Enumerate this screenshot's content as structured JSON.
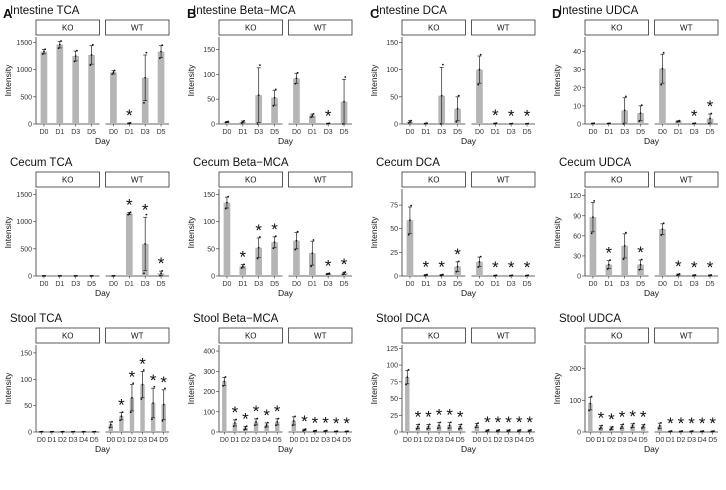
{
  "panel_labels": [
    "A",
    "B",
    "C",
    "D"
  ],
  "chart_data": [
    {
      "type": "bar",
      "title": "Intestine TCA",
      "xlabel": "Day",
      "ylabel": "Intensity",
      "facets": [
        {
          "name": "KO",
          "categories": [
            "D0",
            "D1",
            "D3",
            "D5"
          ],
          "values": [
            1330,
            1460,
            1250,
            1270
          ],
          "err": [
            40,
            60,
            90,
            170
          ],
          "stars": [
            false,
            false,
            false,
            false
          ]
        },
        {
          "name": "WT",
          "categories": [
            "D0",
            "D1",
            "D3",
            "D5"
          ],
          "values": [
            950,
            15,
            850,
            1330
          ],
          "err": [
            30,
            5,
            420,
            110
          ],
          "stars": [
            false,
            true,
            false,
            false
          ]
        }
      ],
      "yticks": [
        0,
        500,
        1000,
        1500
      ],
      "ylim": [
        0,
        1600
      ]
    },
    {
      "type": "bar",
      "title": "Intestine Beta−MCA",
      "xlabel": "Day",
      "ylabel": "Intensity",
      "facets": [
        {
          "name": "KO",
          "categories": [
            "D0",
            "D1",
            "D3",
            "D5"
          ],
          "values": [
            4,
            4,
            58,
            53
          ],
          "err": [
            1,
            2,
            55,
            15
          ],
          "stars": [
            false,
            false,
            false,
            false
          ]
        },
        {
          "name": "WT",
          "categories": [
            "D0",
            "D1",
            "D3",
            "D5"
          ],
          "values": [
            92,
            17,
            1,
            45
          ],
          "err": [
            10,
            3,
            0.5,
            45
          ],
          "stars": [
            false,
            false,
            true,
            false
          ]
        }
      ],
      "yticks": [
        0,
        50,
        100,
        150
      ],
      "ylim": [
        0,
        175
      ]
    },
    {
      "type": "bar",
      "title": "Intestine DCA",
      "xlabel": "Day",
      "ylabel": "Intensity",
      "facets": [
        {
          "name": "KO",
          "categories": [
            "D0",
            "D1",
            "D3",
            "D5"
          ],
          "values": [
            4,
            1,
            52,
            28
          ],
          "err": [
            2,
            0.5,
            52,
            22
          ],
          "stars": [
            false,
            false,
            false,
            false
          ]
        },
        {
          "name": "WT",
          "categories": [
            "D0",
            "D1",
            "D3",
            "D5"
          ],
          "values": [
            100,
            1,
            0.5,
            0.5
          ],
          "err": [
            25,
            0.5,
            0.3,
            0.3
          ],
          "stars": [
            false,
            true,
            true,
            true
          ]
        }
      ],
      "yticks": [
        0,
        50,
        100,
        150
      ],
      "ylim": [
        0,
        160
      ]
    },
    {
      "type": "bar",
      "title": "Intestine UDCA",
      "xlabel": "Day",
      "ylabel": "Intensity",
      "facets": [
        {
          "name": "KO",
          "categories": [
            "D0",
            "D1",
            "D3",
            "D5"
          ],
          "values": [
            0.3,
            0.3,
            7.5,
            6
          ],
          "err": [
            0.1,
            0.1,
            7,
            4
          ],
          "stars": [
            false,
            false,
            false,
            false
          ]
        },
        {
          "name": "WT",
          "categories": [
            "D0",
            "D1",
            "D3",
            "D5"
          ],
          "values": [
            30.5,
            1.5,
            0.3,
            3
          ],
          "err": [
            8,
            0.3,
            0.1,
            2.5
          ],
          "stars": [
            false,
            false,
            true,
            true
          ]
        }
      ],
      "yticks": [
        0,
        10,
        20,
        30,
        40
      ],
      "ylim": [
        0,
        48
      ]
    },
    {
      "type": "bar",
      "title": "Cecum TCA",
      "xlabel": "Day",
      "ylabel": "Intensity",
      "facets": [
        {
          "name": "KO",
          "categories": [
            "D0",
            "D1",
            "D3",
            "D5"
          ],
          "values": [
            2,
            2,
            2,
            2
          ],
          "err": [
            1,
            1,
            1,
            1
          ],
          "stars": [
            false,
            false,
            false,
            false
          ]
        },
        {
          "name": "WT",
          "categories": [
            "D0",
            "D1",
            "D3",
            "D5"
          ],
          "values": [
            2,
            1150,
            590,
            50
          ],
          "err": [
            1,
            20,
            490,
            40
          ],
          "stars": [
            false,
            true,
            true,
            true
          ]
        }
      ],
      "yticks": [
        0,
        500,
        1000,
        1500
      ],
      "ylim": [
        0,
        1600
      ]
    },
    {
      "type": "bar",
      "title": "Cecum Beta−MCA",
      "xlabel": "Day",
      "ylabel": "Intensity",
      "facets": [
        {
          "name": "KO",
          "categories": [
            "D0",
            "D1",
            "D3",
            "D5"
          ],
          "values": [
            135,
            18,
            52,
            62
          ],
          "err": [
            10,
            3,
            18,
            10
          ],
          "stars": [
            false,
            true,
            true,
            true
          ]
        },
        {
          "name": "WT",
          "categories": [
            "D0",
            "D1",
            "D3",
            "D5"
          ],
          "values": [
            65,
            42,
            4,
            5
          ],
          "err": [
            15,
            22,
            1,
            2
          ],
          "stars": [
            false,
            false,
            true,
            true
          ]
        }
      ],
      "yticks": [
        0,
        50,
        100,
        150
      ],
      "ylim": [
        0,
        160
      ]
    },
    {
      "type": "bar",
      "title": "Cecum DCA",
      "xlabel": "Day",
      "ylabel": "Intensity",
      "facets": [
        {
          "name": "KO",
          "categories": [
            "D0",
            "D1",
            "D3",
            "D5"
          ],
          "values": [
            59,
            1,
            1,
            10
          ],
          "err": [
            14,
            0.5,
            0.5,
            5
          ],
          "stars": [
            false,
            true,
            true,
            true
          ]
        },
        {
          "name": "WT",
          "categories": [
            "D0",
            "D1",
            "D3",
            "D5"
          ],
          "values": [
            15,
            0.5,
            0.5,
            0.5
          ],
          "err": [
            5,
            0.3,
            0.3,
            0.3
          ],
          "stars": [
            false,
            true,
            true,
            true
          ]
        }
      ],
      "yticks": [
        0,
        25,
        50,
        75
      ],
      "ylim": [
        0,
        92
      ]
    },
    {
      "type": "bar",
      "title": "Cecum UDCA",
      "xlabel": "Day",
      "ylabel": "Intensity",
      "facets": [
        {
          "name": "KO",
          "categories": [
            "D0",
            "D1",
            "D3",
            "D5"
          ],
          "values": [
            88,
            17,
            45,
            17
          ],
          "err": [
            22,
            6,
            18,
            7
          ],
          "stars": [
            false,
            true,
            false,
            true
          ]
        },
        {
          "name": "WT",
          "categories": [
            "D0",
            "D1",
            "D3",
            "D5"
          ],
          "values": [
            70,
            2,
            1,
            1
          ],
          "err": [
            8,
            1,
            0.5,
            0.5
          ],
          "stars": [
            false,
            true,
            true,
            true
          ]
        }
      ],
      "yticks": [
        0,
        30,
        60,
        90,
        120
      ],
      "ylim": [
        0,
        130
      ]
    },
    {
      "type": "bar",
      "title": "Stool TCA",
      "xlabel": "Day",
      "ylabel": "Intensity",
      "facets": [
        {
          "name": "KO",
          "categories": [
            "D0",
            "D1",
            "D2",
            "D3",
            "D4",
            "D5"
          ],
          "values": [
            0.5,
            0.5,
            0.5,
            0.5,
            0.5,
            0.5
          ],
          "err": [
            0.2,
            0.2,
            0.2,
            0.2,
            0.2,
            0.2
          ],
          "stars": [
            false,
            false,
            false,
            false,
            false,
            false
          ]
        },
        {
          "name": "WT",
          "categories": [
            "D0",
            "D1",
            "D2",
            "D3",
            "D4",
            "D5"
          ],
          "values": [
            14,
            30,
            65,
            90,
            55,
            52
          ],
          "err": [
            5,
            7,
            25,
            25,
            28,
            28
          ],
          "stars": [
            false,
            true,
            true,
            true,
            true,
            true
          ]
        }
      ],
      "yticks": [
        0,
        50,
        100,
        150
      ],
      "ylim": [
        0,
        165
      ]
    },
    {
      "type": "bar",
      "title": "Stool Beta−MCA",
      "xlabel": "Day",
      "ylabel": "Intensity",
      "facets": [
        {
          "name": "KO",
          "categories": [
            "D0",
            "D1",
            "D2",
            "D3",
            "D4",
            "D5"
          ],
          "values": [
            250,
            45,
            20,
            50,
            35,
            50
          ],
          "err": [
            20,
            15,
            8,
            15,
            10,
            15
          ],
          "stars": [
            false,
            true,
            true,
            true,
            true,
            true
          ]
        },
        {
          "name": "WT",
          "categories": [
            "D0",
            "D1",
            "D2",
            "D3",
            "D4",
            "D5"
          ],
          "values": [
            55,
            10,
            5,
            5,
            3,
            3
          ],
          "err": [
            20,
            4,
            2,
            2,
            1,
            1
          ],
          "stars": [
            false,
            true,
            true,
            true,
            true,
            true
          ]
        }
      ],
      "yticks": [
        0,
        100,
        200,
        300,
        400
      ],
      "ylim": [
        0,
        430
      ]
    },
    {
      "type": "bar",
      "title": "Stool DCA",
      "xlabel": "Day",
      "ylabel": "Intensity",
      "facets": [
        {
          "name": "KO",
          "categories": [
            "D0",
            "D1",
            "D2",
            "D3",
            "D4",
            "D5"
          ],
          "values": [
            82,
            8,
            8,
            10,
            10,
            8
          ],
          "err": [
            10,
            3,
            3,
            4,
            4,
            3
          ],
          "stars": [
            false,
            true,
            true,
            true,
            true,
            true
          ]
        },
        {
          "name": "WT",
          "categories": [
            "D0",
            "D1",
            "D2",
            "D3",
            "D4",
            "D5"
          ],
          "values": [
            10,
            2,
            2,
            2,
            2,
            2
          ],
          "err": [
            3,
            1,
            1,
            1,
            1,
            1
          ],
          "stars": [
            false,
            true,
            true,
            true,
            true,
            true
          ]
        }
      ],
      "yticks": [
        0,
        25,
        50,
        75,
        100,
        125
      ],
      "ylim": [
        0,
        130
      ]
    },
    {
      "type": "bar",
      "title": "Stool UDCA",
      "xlabel": "Day",
      "ylabel": "Intensity",
      "facets": [
        {
          "name": "KO",
          "categories": [
            "D0",
            "D1",
            "D2",
            "D3",
            "D4",
            "D5"
          ],
          "values": [
            90,
            15,
            12,
            18,
            20,
            18
          ],
          "err": [
            20,
            5,
            4,
            6,
            6,
            5
          ],
          "stars": [
            false,
            true,
            true,
            true,
            true,
            true
          ]
        },
        {
          "name": "WT",
          "categories": [
            "D0",
            "D1",
            "D2",
            "D3",
            "D4",
            "D5"
          ],
          "values": [
            20,
            2,
            2,
            2,
            2,
            2
          ],
          "err": [
            8,
            1,
            1,
            1,
            1,
            1
          ],
          "stars": [
            false,
            true,
            true,
            true,
            true,
            true
          ]
        }
      ],
      "yticks": [
        0,
        100,
        200
      ],
      "ylim": [
        0,
        275
      ]
    }
  ]
}
